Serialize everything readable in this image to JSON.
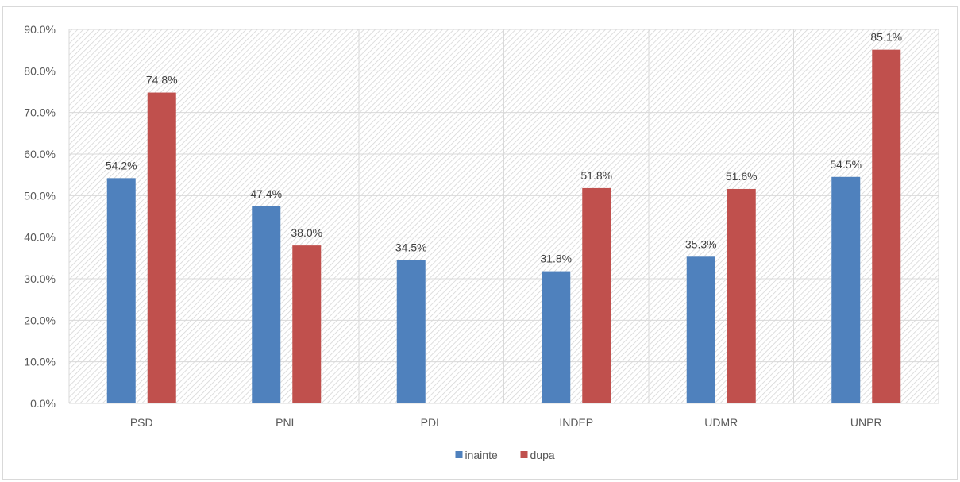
{
  "chart_data": {
    "type": "bar",
    "categories": [
      "PSD",
      "PNL",
      "PDL",
      "INDEP",
      "UDMR",
      "UNPR"
    ],
    "series": [
      {
        "name": "inainte",
        "values": [
          54.2,
          47.4,
          34.5,
          31.8,
          35.3,
          54.5
        ],
        "labels": [
          "54.2%",
          "47.4%",
          "34.5%",
          "31.8%",
          "35.3%",
          "54.5%"
        ],
        "color": "#4f81bd"
      },
      {
        "name": "dupa",
        "values": [
          74.8,
          38.0,
          null,
          51.8,
          51.6,
          85.1
        ],
        "labels": [
          "74.8%",
          "38.0%",
          "",
          "51.8%",
          "51.6%",
          "85.1%"
        ],
        "color": "#c0504d"
      }
    ],
    "y_ticks": [
      "0.0%",
      "10.0%",
      "20.0%",
      "30.0%",
      "40.0%",
      "50.0%",
      "60.0%",
      "70.0%",
      "80.0%",
      "90.0%"
    ],
    "ylim": [
      0,
      90
    ],
    "grid": true,
    "plot_background": "hatched",
    "legend_position": "bottom"
  }
}
